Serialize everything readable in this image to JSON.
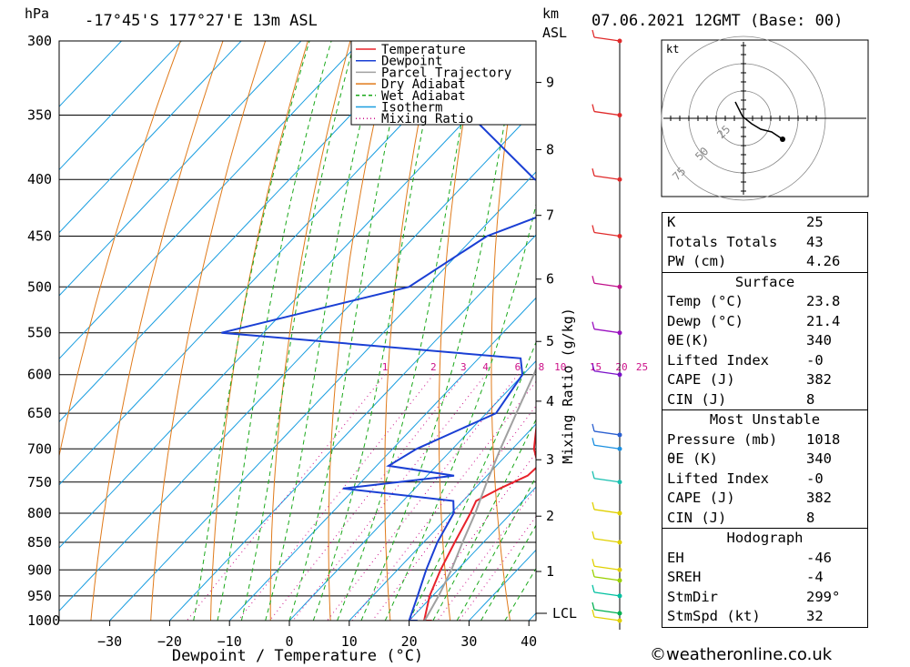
{
  "header": {
    "location": "-17°45'S  177°27'E  13m  ASL",
    "date": "07.06.2021  12GMT  (Base: 00)",
    "hpa_label": "hPa",
    "km_label": "km",
    "asl_label": "ASL"
  },
  "colors": {
    "temperature": "#e8222a",
    "dewpoint": "#1a3fd4",
    "parcel": "#a0a0a0",
    "dry_adiabat": "#e07a1a",
    "wet_adiabat": "#1aa81a",
    "isotherm": "#1a9ee0",
    "mixing_ratio": "#cc1189"
  },
  "chart_data": {
    "type": "line",
    "title": "-17°45'S  177°27'E  13m  ASL",
    "xlabel": "Dewpoint / Temperature (°C)",
    "ylabel": "hPa",
    "y2label": "Mixing Ratio (g/kg)",
    "xlim": [
      -40,
      40
    ],
    "ylim": [
      1000,
      300
    ],
    "x_ticks": [
      -30,
      -20,
      -10,
      0,
      10,
      20,
      30,
      40
    ],
    "pressure_ticks": [
      300,
      350,
      400,
      450,
      500,
      550,
      600,
      650,
      700,
      750,
      800,
      850,
      900,
      950,
      1000
    ],
    "km_ticks": [
      {
        "km": "1",
        "p": 903
      },
      {
        "km": "2",
        "p": 805
      },
      {
        "km": "3",
        "p": 716
      },
      {
        "km": "4",
        "p": 634
      },
      {
        "km": "5",
        "p": 560
      },
      {
        "km": "6",
        "p": 492
      },
      {
        "km": "7",
        "p": 431
      },
      {
        "km": "8",
        "p": 376
      },
      {
        "km": "9",
        "p": 327
      }
    ],
    "lcl": {
      "label": "LCL",
      "p": 985
    },
    "mixing_ratio_labels": [
      "1",
      "2",
      "3",
      "4",
      "6",
      "8",
      "10",
      "15",
      "20",
      "25"
    ],
    "mixing_ratio_values": [
      1,
      2,
      3,
      4,
      6,
      8,
      10,
      15,
      20,
      25
    ],
    "legend": [
      "Temperature",
      "Dewpoint",
      "Parcel Trajectory",
      "Dry Adiabat",
      "Wet Adiabat",
      "Isotherm",
      "Mixing Ratio"
    ],
    "series": [
      {
        "name": "Temperature",
        "p": [
          1018,
          1000,
          950,
          900,
          850,
          800,
          780,
          760,
          740,
          725,
          700,
          650,
          600,
          550,
          500,
          450,
          420,
          400,
          385,
          370,
          350,
          300
        ],
        "t": [
          23.8,
          22.5,
          19.5,
          17.2,
          15.2,
          13.2,
          12.2,
          14.2,
          16.8,
          17.0,
          13.6,
          8.6,
          3.6,
          -1.8,
          -7.5,
          -15.0,
          -20.0,
          -24.0,
          -22.0,
          -24.0,
          -28.0,
          -38.0
        ]
      },
      {
        "name": "Dewpoint",
        "p": [
          1018,
          1000,
          950,
          900,
          850,
          800,
          780,
          760,
          740,
          725,
          700,
          650,
          600,
          580,
          550,
          500,
          450,
          415,
          400,
          350,
          340,
          300
        ],
        "t": [
          21.4,
          20.0,
          17.5,
          14.8,
          12.3,
          10.4,
          8.4,
          -12.0,
          4.5,
          -8.0,
          -6.0,
          1.6,
          -0.1,
          -3.0,
          -57.0,
          -33.0,
          -28.0,
          -17.0,
          -29.0,
          -50.0,
          -50.0,
          -57.0
        ]
      },
      {
        "name": "Parcel Trajectory",
        "p": [
          1000,
          950,
          900,
          850,
          800,
          750,
          700,
          650,
          600,
          550,
          500,
          450,
          400,
          350,
          300
        ],
        "t": [
          22.6,
          21.0,
          19.0,
          16.5,
          14.0,
          11.0,
          8.0,
          5.0,
          1.8,
          -2.0,
          -6.5,
          -12.0,
          -19.0,
          -28.0,
          -39.5
        ]
      }
    ]
  },
  "wind_profile": [
    {
      "p": 1000,
      "color": "#e0d000"
    },
    {
      "p": 985,
      "color": "#00b050"
    },
    {
      "p": 950,
      "color": "#00c0a0"
    },
    {
      "p": 920,
      "color": "#9ad000"
    },
    {
      "p": 900,
      "color": "#e0d000"
    },
    {
      "p": 850,
      "color": "#e0d000"
    },
    {
      "p": 800,
      "color": "#e0d000"
    },
    {
      "p": 750,
      "color": "#1ac0b0"
    },
    {
      "p": 700,
      "color": "#1a8fe0"
    },
    {
      "p": 680,
      "color": "#2a5fd0"
    },
    {
      "p": 600,
      "color": "#7a10c8"
    },
    {
      "p": 550,
      "color": "#9a10c0"
    },
    {
      "p": 500,
      "color": "#c0108a"
    },
    {
      "p": 450,
      "color": "#e02a2a"
    },
    {
      "p": 400,
      "color": "#e02a2a"
    },
    {
      "p": 350,
      "color": "#e02a2a"
    },
    {
      "p": 300,
      "color": "#e02a2a"
    }
  ],
  "hodograph": {
    "unit": "kt",
    "ring_labels": [
      "25",
      "50",
      "75"
    ]
  },
  "indices": {
    "rows": [
      {
        "k": "K",
        "v": "25"
      },
      {
        "k": "Totals Totals",
        "v": "43"
      },
      {
        "k": "PW (cm)",
        "v": "4.26"
      }
    ],
    "surface": {
      "title": "Surface",
      "rows": [
        {
          "k": "Temp (°C)",
          "v": "23.8"
        },
        {
          "k": "Dewp (°C)",
          "v": "21.4"
        },
        {
          "k": "θE(K)",
          "v": "340"
        },
        {
          "k": "Lifted Index",
          "v": "-0"
        },
        {
          "k": "CAPE (J)",
          "v": "382"
        },
        {
          "k": "CIN (J)",
          "v": "8"
        }
      ]
    },
    "most_unstable": {
      "title": "Most Unstable",
      "rows": [
        {
          "k": "Pressure (mb)",
          "v": "1018"
        },
        {
          "k": "θE (K)",
          "v": "340"
        },
        {
          "k": "Lifted Index",
          "v": "-0"
        },
        {
          "k": "CAPE (J)",
          "v": "382"
        },
        {
          "k": "CIN (J)",
          "v": "8"
        }
      ]
    },
    "hodograph_block": {
      "title": "Hodograph",
      "rows": [
        {
          "k": "EH",
          "v": "-46"
        },
        {
          "k": "SREH",
          "v": "-4"
        },
        {
          "k": "StmDir",
          "v": "299°"
        },
        {
          "k": "StmSpd (kt)",
          "v": "32"
        }
      ]
    }
  },
  "footer": "©weatheronline.co.uk"
}
